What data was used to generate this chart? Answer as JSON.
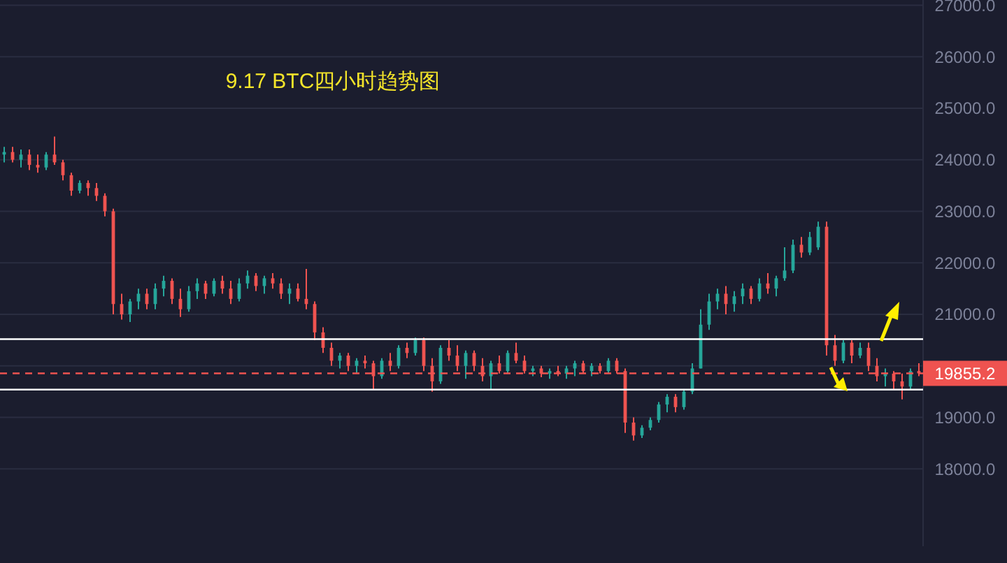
{
  "chart_data": {
    "type": "candlestick",
    "title": "9.17  BTC四小时趋势图",
    "categories": [
      null,
      null,
      null,
      null,
      null,
      null,
      null,
      null,
      null,
      null,
      null,
      null,
      null,
      null,
      null,
      null,
      null,
      null,
      null,
      null,
      null,
      null,
      null,
      null,
      null,
      null,
      null,
      null,
      null,
      null,
      null,
      null,
      null,
      null,
      null,
      null,
      null,
      null,
      null,
      null,
      null,
      null,
      null,
      null,
      null,
      null,
      null,
      null,
      null,
      null,
      null,
      null,
      null,
      null,
      null,
      null,
      null,
      null,
      null,
      null,
      null,
      null,
      null,
      null,
      null,
      null,
      null,
      null,
      null,
      null,
      null,
      null,
      null,
      null,
      null,
      null,
      null,
      null,
      null,
      null,
      null,
      null,
      null,
      null,
      null,
      null,
      null,
      null,
      null,
      null,
      null,
      null,
      null,
      null,
      null,
      null,
      null,
      null,
      null,
      null,
      null,
      null,
      null,
      null,
      null,
      null,
      null,
      null,
      null,
      null
    ],
    "ohlc": [
      [
        24100,
        24250,
        23950,
        24150
      ],
      [
        24150,
        24250,
        23950,
        24000
      ],
      [
        24000,
        24200,
        23850,
        24100
      ],
      [
        24100,
        24200,
        23800,
        23900
      ],
      [
        23900,
        24100,
        23750,
        23850
      ],
      [
        23850,
        24150,
        23800,
        24100
      ],
      [
        24100,
        24450,
        23900,
        23950
      ],
      [
        23950,
        24000,
        23600,
        23700
      ],
      [
        23700,
        23750,
        23300,
        23400
      ],
      [
        23400,
        23600,
        23350,
        23550
      ],
      [
        23550,
        23600,
        23300,
        23450
      ],
      [
        23450,
        23550,
        23200,
        23300
      ],
      [
        23300,
        23350,
        22900,
        23000
      ],
      [
        23000,
        23050,
        21000,
        21200
      ],
      [
        21200,
        21400,
        20900,
        21000
      ],
      [
        21000,
        21300,
        20850,
        21250
      ],
      [
        21250,
        21500,
        21100,
        21400
      ],
      [
        21400,
        21500,
        21100,
        21200
      ],
      [
        21200,
        21600,
        21100,
        21500
      ],
      [
        21500,
        21750,
        21350,
        21650
      ],
      [
        21650,
        21700,
        21200,
        21300
      ],
      [
        21300,
        21500,
        20950,
        21100
      ],
      [
        21100,
        21550,
        21050,
        21450
      ],
      [
        21450,
        21700,
        21300,
        21600
      ],
      [
        21600,
        21650,
        21300,
        21400
      ],
      [
        21400,
        21700,
        21350,
        21650
      ],
      [
        21650,
        21750,
        21400,
        21500
      ],
      [
        21500,
        21650,
        21200,
        21300
      ],
      [
        21300,
        21700,
        21250,
        21600
      ],
      [
        21600,
        21850,
        21500,
        21750
      ],
      [
        21750,
        21800,
        21450,
        21550
      ],
      [
        21550,
        21750,
        21400,
        21700
      ],
      [
        21700,
        21800,
        21500,
        21600
      ],
      [
        21600,
        21700,
        21300,
        21400
      ],
      [
        21400,
        21600,
        21200,
        21500
      ],
      [
        21500,
        21600,
        21250,
        21300
      ],
      [
        21300,
        21880,
        21100,
        21200
      ],
      [
        21200,
        21250,
        20500,
        20650
      ],
      [
        20650,
        20750,
        20250,
        20350
      ],
      [
        20350,
        20450,
        20000,
        20100
      ],
      [
        20100,
        20250,
        19950,
        20200
      ],
      [
        20200,
        20250,
        19900,
        20000
      ],
      [
        20000,
        20150,
        19850,
        20100
      ],
      [
        20100,
        20200,
        19950,
        20050
      ],
      [
        20050,
        20100,
        19550,
        19800
      ],
      [
        19800,
        20150,
        19750,
        20100
      ],
      [
        20100,
        20250,
        19900,
        20000
      ],
      [
        20000,
        20400,
        19950,
        20350
      ],
      [
        20350,
        20450,
        20150,
        20250
      ],
      [
        20250,
        20550,
        20200,
        20500
      ],
      [
        20500,
        20550,
        19900,
        20000
      ],
      [
        20000,
        20150,
        19500,
        19700
      ],
      [
        19700,
        20400,
        19650,
        20350
      ],
      [
        20350,
        20500,
        20100,
        20200
      ],
      [
        20200,
        20400,
        19900,
        20000
      ],
      [
        20000,
        20300,
        19750,
        20250
      ],
      [
        20250,
        20300,
        19900,
        20000
      ],
      [
        20000,
        20150,
        19700,
        19800
      ],
      [
        19800,
        20100,
        19550,
        20050
      ],
      [
        20050,
        20200,
        19850,
        19900
      ],
      [
        19900,
        20300,
        19850,
        20250
      ],
      [
        20250,
        20450,
        20050,
        20100
      ],
      [
        20100,
        20200,
        19850,
        19900
      ],
      [
        19900,
        20000,
        19800,
        19950
      ],
      [
        19950,
        20000,
        19780,
        19850
      ],
      [
        19850,
        19950,
        19750,
        19900
      ],
      [
        19900,
        20000,
        19800,
        19850
      ],
      [
        19850,
        20000,
        19750,
        19950
      ],
      [
        19950,
        20100,
        19800,
        20050
      ],
      [
        20050,
        20100,
        19850,
        19900
      ],
      [
        19900,
        20050,
        19800,
        20000
      ],
      [
        20000,
        20050,
        19850,
        19900
      ],
      [
        19900,
        20150,
        19850,
        20100
      ],
      [
        20100,
        20150,
        19850,
        19900
      ],
      [
        19900,
        19950,
        18700,
        18900
      ],
      [
        18900,
        19000,
        18550,
        18650
      ],
      [
        18650,
        18850,
        18600,
        18800
      ],
      [
        18800,
        19000,
        18750,
        18950
      ],
      [
        18950,
        19300,
        18900,
        19250
      ],
      [
        19250,
        19450,
        19100,
        19400
      ],
      [
        19400,
        19450,
        19100,
        19200
      ],
      [
        19200,
        19550,
        19150,
        19500
      ],
      [
        19500,
        20050,
        19450,
        19950
      ],
      [
        19950,
        21100,
        19950,
        20800
      ],
      [
        20800,
        21400,
        20700,
        21250
      ],
      [
        21250,
        21500,
        21100,
        21400
      ],
      [
        21400,
        21550,
        21000,
        21200
      ],
      [
        21200,
        21450,
        21050,
        21350
      ],
      [
        21350,
        21600,
        21200,
        21500
      ],
      [
        21500,
        21550,
        21200,
        21300
      ],
      [
        21300,
        21700,
        21250,
        21600
      ],
      [
        21600,
        21800,
        21400,
        21500
      ],
      [
        21500,
        21750,
        21350,
        21700
      ],
      [
        21700,
        22300,
        21650,
        21850
      ],
      [
        21850,
        22450,
        21800,
        22350
      ],
      [
        22350,
        22500,
        22100,
        22200
      ],
      [
        22200,
        22600,
        22150,
        22500
      ],
      [
        22300,
        22800,
        22250,
        22700
      ],
      [
        22700,
        22800,
        20200,
        20400
      ],
      [
        20400,
        20600,
        20000,
        20100
      ],
      [
        20100,
        20500,
        20050,
        20450
      ],
      [
        20450,
        20500,
        20050,
        20200
      ],
      [
        20200,
        20450,
        20150,
        20350
      ],
      [
        20350,
        20450,
        19900,
        20000
      ],
      [
        20000,
        20150,
        19700,
        19800
      ],
      [
        19800,
        19950,
        19600,
        19850
      ],
      [
        19850,
        19900,
        19550,
        19700
      ],
      [
        19700,
        19850,
        19350,
        19600
      ],
      [
        19600,
        19950,
        19550,
        19900
      ],
      [
        19900,
        20050,
        19800,
        19855.2
      ]
    ],
    "ylim": [
      16500,
      27100
    ],
    "yticks": [
      {
        "value": 18000,
        "label": "18000.0"
      },
      {
        "value": 19000,
        "label": "19000.0"
      },
      {
        "value": 20000,
        "label": null
      },
      {
        "value": 21000,
        "label": "21000.0"
      },
      {
        "value": 22000,
        "label": "22000.0"
      },
      {
        "value": 23000,
        "label": "23000.0"
      },
      {
        "value": 24000,
        "label": "24000.0"
      },
      {
        "value": 25000,
        "label": "25000.0"
      },
      {
        "value": 26000,
        "label": "26000.0"
      },
      {
        "value": 27000,
        "label": "27000.0"
      }
    ],
    "tick_labels": "y",
    "grid": "y",
    "ref_lines": [
      {
        "axis": "y",
        "value": 20520,
        "color": "#ffffff",
        "line_style": "solid"
      },
      {
        "axis": "y",
        "value": 19540,
        "color": "#ffffff",
        "line_style": "solid"
      },
      {
        "axis": "y",
        "value": 19855.2,
        "label": "19855.2",
        "color": "#ef5350",
        "line_style": "dashed"
      }
    ]
  }
}
